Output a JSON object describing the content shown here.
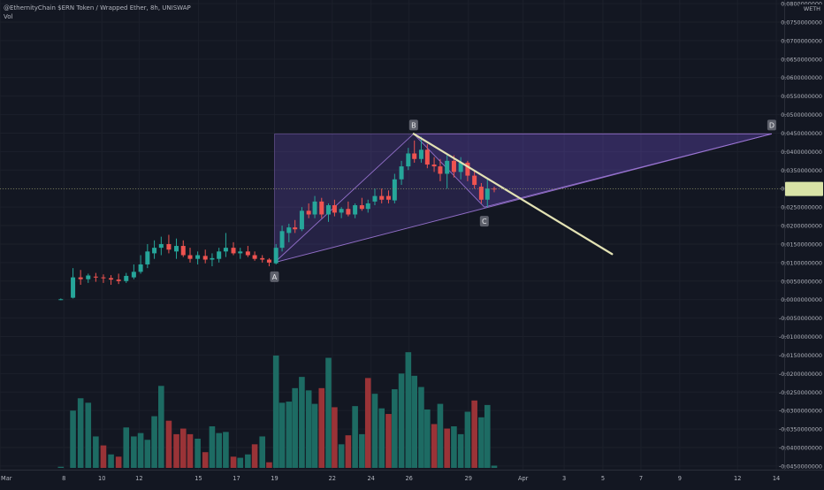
{
  "header": {
    "symbol_line": "@EthernityChain $ERN Token / Wrapped Ether, 8h, UNISWAP",
    "volume_label": "Vol"
  },
  "colors": {
    "background": "#131722",
    "up": "#26a69a",
    "down": "#ef5350",
    "volume_up": "#1d6b63",
    "volume_down": "#9a3337",
    "pattern_fill": "#6a4fc0",
    "pattern_line": "#9f78d8",
    "trend_line": "#e3e2b4",
    "price_badge": "#d8e2a6",
    "point_label_bg": "#5d606b"
  },
  "chart_data": {
    "type": "candlestick",
    "title": "@EthernityChain $ERN Token / Wrapped Ether, 8h, UNISWAP",
    "quote_unit": "WETH",
    "y_axis": {
      "ylim": [
        -0.0455,
        0.0805
      ],
      "tick_labels": [
        "0.0800000000",
        "0.0750000000",
        "0.0700000000",
        "0.0650000000",
        "0.0600000000",
        "0.0550000000",
        "0.0500000000",
        "0.0450000000",
        "0.0400000000",
        "0.0350000000",
        "0.0300000000",
        "0.0250000000",
        "0.0200000000",
        "0.0150000000",
        "0.0100000000",
        "0.0050000000",
        "0.0000000000",
        "-0.0050000000",
        "-0.0100000000",
        "-0.0150000000",
        "-0.0200000000",
        "-0.0250000000",
        "-0.0300000000",
        "-0.0350000000",
        "-0.0400000000",
        "-0.0450000000"
      ],
      "tick_values": [
        0.08,
        0.075,
        0.07,
        0.065,
        0.06,
        0.055,
        0.05,
        0.045,
        0.04,
        0.035,
        0.03,
        0.025,
        0.02,
        0.015,
        0.01,
        0.005,
        0.0,
        -0.005,
        -0.01,
        -0.015,
        -0.02,
        -0.025,
        -0.03,
        -0.035,
        -0.04,
        -0.045
      ],
      "current_price": 0.0299
    },
    "x_axis": {
      "tick_labels": [
        "Mar",
        "8",
        "10",
        "12",
        "15",
        "17",
        "19",
        "22",
        "24",
        "26",
        "29",
        "Apr",
        "3",
        "5",
        "7",
        "9",
        "12",
        "14"
      ],
      "tick_index": [
        0,
        8.4,
        13.4,
        18.3,
        26.1,
        31.1,
        36.1,
        43.7,
        48.8,
        53.8,
        61.6,
        68.8,
        74.2,
        79.3,
        84.3,
        89.4,
        97.0,
        102.1
      ],
      "xlim": [
        0,
        106
      ]
    },
    "candles": [
      {
        "i": 8.0,
        "o": 4e-05,
        "h": 0.0003,
        "l": -0.00015,
        "c": 0.0001
      },
      {
        "i": 9.6,
        "o": 0.0005,
        "h": 0.0085,
        "l": 0.0003,
        "c": 0.006
      },
      {
        "i": 10.6,
        "o": 0.006,
        "h": 0.008,
        "l": 0.004,
        "c": 0.0055
      },
      {
        "i": 11.6,
        "o": 0.0055,
        "h": 0.007,
        "l": 0.0045,
        "c": 0.0065
      },
      {
        "i": 12.6,
        "o": 0.0062,
        "h": 0.0072,
        "l": 0.0048,
        "c": 0.006
      },
      {
        "i": 13.6,
        "o": 0.006,
        "h": 0.0068,
        "l": 0.0045,
        "c": 0.0058
      },
      {
        "i": 14.6,
        "o": 0.0058,
        "h": 0.0066,
        "l": 0.004,
        "c": 0.0054
      },
      {
        "i": 15.6,
        "o": 0.0054,
        "h": 0.007,
        "l": 0.0042,
        "c": 0.005
      },
      {
        "i": 16.6,
        "o": 0.005,
        "h": 0.0072,
        "l": 0.0045,
        "c": 0.0064
      },
      {
        "i": 17.6,
        "o": 0.006,
        "h": 0.0095,
        "l": 0.0055,
        "c": 0.0075
      },
      {
        "i": 18.5,
        "o": 0.0075,
        "h": 0.012,
        "l": 0.007,
        "c": 0.0095
      },
      {
        "i": 19.4,
        "o": 0.0095,
        "h": 0.015,
        "l": 0.0085,
        "c": 0.013
      },
      {
        "i": 20.3,
        "o": 0.0125,
        "h": 0.016,
        "l": 0.011,
        "c": 0.014
      },
      {
        "i": 21.2,
        "o": 0.014,
        "h": 0.017,
        "l": 0.012,
        "c": 0.015
      },
      {
        "i": 22.2,
        "o": 0.015,
        "h": 0.0175,
        "l": 0.0125,
        "c": 0.0135
      },
      {
        "i": 23.2,
        "o": 0.013,
        "h": 0.0165,
        "l": 0.011,
        "c": 0.0145
      },
      {
        "i": 24.1,
        "o": 0.0145,
        "h": 0.016,
        "l": 0.0115,
        "c": 0.012
      },
      {
        "i": 25.0,
        "o": 0.012,
        "h": 0.014,
        "l": 0.01,
        "c": 0.011
      },
      {
        "i": 26.0,
        "o": 0.011,
        "h": 0.013,
        "l": 0.0095,
        "c": 0.012
      },
      {
        "i": 27.0,
        "o": 0.0118,
        "h": 0.0135,
        "l": 0.0098,
        "c": 0.0108
      },
      {
        "i": 27.9,
        "o": 0.0108,
        "h": 0.0125,
        "l": 0.009,
        "c": 0.0112
      },
      {
        "i": 28.8,
        "o": 0.011,
        "h": 0.014,
        "l": 0.01,
        "c": 0.013
      },
      {
        "i": 29.7,
        "o": 0.013,
        "h": 0.018,
        "l": 0.0115,
        "c": 0.014
      },
      {
        "i": 30.7,
        "o": 0.014,
        "h": 0.0155,
        "l": 0.012,
        "c": 0.0125
      },
      {
        "i": 31.6,
        "o": 0.0125,
        "h": 0.014,
        "l": 0.011,
        "c": 0.013
      },
      {
        "i": 32.6,
        "o": 0.013,
        "h": 0.0145,
        "l": 0.0115,
        "c": 0.012
      },
      {
        "i": 33.5,
        "o": 0.012,
        "h": 0.013,
        "l": 0.0105,
        "c": 0.011
      },
      {
        "i": 34.5,
        "o": 0.0112,
        "h": 0.012,
        "l": 0.01,
        "c": 0.0108
      },
      {
        "i": 35.4,
        "o": 0.0108,
        "h": 0.0112,
        "l": 0.009,
        "c": 0.01
      },
      {
        "i": 36.3,
        "o": 0.0098,
        "h": 0.015,
        "l": 0.0095,
        "c": 0.014
      },
      {
        "i": 37.1,
        "o": 0.014,
        "h": 0.02,
        "l": 0.013,
        "c": 0.0185
      },
      {
        "i": 38.0,
        "o": 0.018,
        "h": 0.0205,
        "l": 0.0155,
        "c": 0.0195
      },
      {
        "i": 38.8,
        "o": 0.0195,
        "h": 0.0215,
        "l": 0.018,
        "c": 0.019
      },
      {
        "i": 39.7,
        "o": 0.019,
        "h": 0.025,
        "l": 0.0185,
        "c": 0.024
      },
      {
        "i": 40.6,
        "o": 0.024,
        "h": 0.026,
        "l": 0.022,
        "c": 0.023
      },
      {
        "i": 41.4,
        "o": 0.023,
        "h": 0.028,
        "l": 0.022,
        "c": 0.0265
      },
      {
        "i": 42.3,
        "o": 0.0265,
        "h": 0.0275,
        "l": 0.022,
        "c": 0.023
      },
      {
        "i": 43.2,
        "o": 0.023,
        "h": 0.026,
        "l": 0.021,
        "c": 0.0255
      },
      {
        "i": 44.0,
        "o": 0.0255,
        "h": 0.027,
        "l": 0.0225,
        "c": 0.0235
      },
      {
        "i": 44.9,
        "o": 0.0235,
        "h": 0.025,
        "l": 0.022,
        "c": 0.0245
      },
      {
        "i": 45.8,
        "o": 0.0245,
        "h": 0.0265,
        "l": 0.0225,
        "c": 0.023
      },
      {
        "i": 46.7,
        "o": 0.023,
        "h": 0.026,
        "l": 0.022,
        "c": 0.0255
      },
      {
        "i": 47.6,
        "o": 0.0255,
        "h": 0.0275,
        "l": 0.024,
        "c": 0.0245
      },
      {
        "i": 48.4,
        "o": 0.0245,
        "h": 0.027,
        "l": 0.0235,
        "c": 0.026
      },
      {
        "i": 49.3,
        "o": 0.0265,
        "h": 0.03,
        "l": 0.0255,
        "c": 0.028
      },
      {
        "i": 50.2,
        "o": 0.028,
        "h": 0.03,
        "l": 0.026,
        "c": 0.027
      },
      {
        "i": 51.1,
        "o": 0.028,
        "h": 0.0295,
        "l": 0.026,
        "c": 0.027
      },
      {
        "i": 51.9,
        "o": 0.0268,
        "h": 0.034,
        "l": 0.026,
        "c": 0.0325
      },
      {
        "i": 52.8,
        "o": 0.0325,
        "h": 0.0375,
        "l": 0.031,
        "c": 0.036
      },
      {
        "i": 53.7,
        "o": 0.036,
        "h": 0.041,
        "l": 0.035,
        "c": 0.0395
      },
      {
        "i": 54.5,
        "o": 0.0395,
        "h": 0.043,
        "l": 0.037,
        "c": 0.038
      },
      {
        "i": 55.4,
        "o": 0.038,
        "h": 0.044,
        "l": 0.037,
        "c": 0.0405
      },
      {
        "i": 56.2,
        "o": 0.0405,
        "h": 0.042,
        "l": 0.0355,
        "c": 0.0365
      },
      {
        "i": 57.1,
        "o": 0.0365,
        "h": 0.0385,
        "l": 0.0345,
        "c": 0.036
      },
      {
        "i": 57.9,
        "o": 0.036,
        "h": 0.038,
        "l": 0.032,
        "c": 0.034
      },
      {
        "i": 58.8,
        "o": 0.034,
        "h": 0.0395,
        "l": 0.03,
        "c": 0.0375
      },
      {
        "i": 59.7,
        "o": 0.0375,
        "h": 0.039,
        "l": 0.033,
        "c": 0.0345
      },
      {
        "i": 60.6,
        "o": 0.0345,
        "h": 0.0385,
        "l": 0.0325,
        "c": 0.037
      },
      {
        "i": 61.5,
        "o": 0.037,
        "h": 0.0375,
        "l": 0.032,
        "c": 0.0335
      },
      {
        "i": 62.4,
        "o": 0.0335,
        "h": 0.035,
        "l": 0.03,
        "c": 0.031
      },
      {
        "i": 63.3,
        "o": 0.0305,
        "h": 0.0315,
        "l": 0.026,
        "c": 0.027
      },
      {
        "i": 64.1,
        "o": 0.027,
        "h": 0.0325,
        "l": 0.025,
        "c": 0.03
      },
      {
        "i": 65.0,
        "o": 0.03,
        "h": 0.0305,
        "l": 0.029,
        "c": 0.0299
      }
    ],
    "volume": [
      {
        "i": 8.0,
        "v": 0.01,
        "up": true
      },
      {
        "i": 9.6,
        "v": 0.51,
        "up": true
      },
      {
        "i": 10.6,
        "v": 0.62,
        "up": true
      },
      {
        "i": 11.6,
        "v": 0.58,
        "up": true
      },
      {
        "i": 12.6,
        "v": 0.28,
        "up": true
      },
      {
        "i": 13.6,
        "v": 0.2,
        "up": false
      },
      {
        "i": 14.6,
        "v": 0.12,
        "up": true
      },
      {
        "i": 15.6,
        "v": 0.1,
        "up": false
      },
      {
        "i": 16.6,
        "v": 0.36,
        "up": true
      },
      {
        "i": 17.6,
        "v": 0.28,
        "up": true
      },
      {
        "i": 18.5,
        "v": 0.31,
        "up": true
      },
      {
        "i": 19.4,
        "v": 0.25,
        "up": true
      },
      {
        "i": 20.3,
        "v": 0.46,
        "up": true
      },
      {
        "i": 21.2,
        "v": 0.73,
        "up": true
      },
      {
        "i": 22.2,
        "v": 0.42,
        "up": false
      },
      {
        "i": 23.2,
        "v": 0.3,
        "up": false
      },
      {
        "i": 24.1,
        "v": 0.35,
        "up": false
      },
      {
        "i": 25.0,
        "v": 0.3,
        "up": false
      },
      {
        "i": 26.0,
        "v": 0.26,
        "up": true
      },
      {
        "i": 27.0,
        "v": 0.14,
        "up": false
      },
      {
        "i": 27.9,
        "v": 0.37,
        "up": true
      },
      {
        "i": 28.8,
        "v": 0.31,
        "up": true
      },
      {
        "i": 29.7,
        "v": 0.32,
        "up": true
      },
      {
        "i": 30.7,
        "v": 0.1,
        "up": false
      },
      {
        "i": 31.6,
        "v": 0.09,
        "up": true
      },
      {
        "i": 32.6,
        "v": 0.12,
        "up": true
      },
      {
        "i": 33.5,
        "v": 0.21,
        "up": false
      },
      {
        "i": 34.5,
        "v": 0.28,
        "up": true
      },
      {
        "i": 35.4,
        "v": 0.05,
        "up": false
      },
      {
        "i": 36.3,
        "v": 1.0,
        "up": true
      },
      {
        "i": 37.1,
        "v": 0.58,
        "up": true
      },
      {
        "i": 38.0,
        "v": 0.59,
        "up": true
      },
      {
        "i": 38.8,
        "v": 0.71,
        "up": true
      },
      {
        "i": 39.7,
        "v": 0.81,
        "up": true
      },
      {
        "i": 40.6,
        "v": 0.69,
        "up": true
      },
      {
        "i": 41.4,
        "v": 0.57,
        "up": true
      },
      {
        "i": 42.3,
        "v": 0.71,
        "up": false
      },
      {
        "i": 43.2,
        "v": 0.98,
        "up": true
      },
      {
        "i": 44.0,
        "v": 0.54,
        "up": false
      },
      {
        "i": 44.9,
        "v": 0.21,
        "up": true
      },
      {
        "i": 45.8,
        "v": 0.29,
        "up": false
      },
      {
        "i": 46.7,
        "v": 0.55,
        "up": true
      },
      {
        "i": 47.6,
        "v": 0.3,
        "up": true
      },
      {
        "i": 48.4,
        "v": 0.8,
        "up": false
      },
      {
        "i": 49.3,
        "v": 0.66,
        "up": true
      },
      {
        "i": 50.2,
        "v": 0.53,
        "up": true
      },
      {
        "i": 51.1,
        "v": 0.48,
        "up": false
      },
      {
        "i": 51.9,
        "v": 0.7,
        "up": true
      },
      {
        "i": 52.8,
        "v": 0.84,
        "up": true
      },
      {
        "i": 53.7,
        "v": 1.03,
        "up": true
      },
      {
        "i": 54.5,
        "v": 0.82,
        "up": true
      },
      {
        "i": 55.4,
        "v": 0.72,
        "up": true
      },
      {
        "i": 56.2,
        "v": 0.52,
        "up": true
      },
      {
        "i": 57.1,
        "v": 0.39,
        "up": false
      },
      {
        "i": 57.9,
        "v": 0.57,
        "up": true
      },
      {
        "i": 58.8,
        "v": 0.35,
        "up": false
      },
      {
        "i": 59.7,
        "v": 0.37,
        "up": true
      },
      {
        "i": 60.6,
        "v": 0.3,
        "up": true
      },
      {
        "i": 61.5,
        "v": 0.5,
        "up": true
      },
      {
        "i": 62.4,
        "v": 0.6,
        "up": false
      },
      {
        "i": 63.3,
        "v": 0.45,
        "up": true
      },
      {
        "i": 64.1,
        "v": 0.56,
        "up": true
      },
      {
        "i": 65.0,
        "v": 0.02,
        "up": true
      }
    ],
    "pattern": {
      "points": [
        {
          "label": "A",
          "i": 36.1,
          "price": 0.01,
          "label_pos": "below"
        },
        {
          "label": "B",
          "i": 54.4,
          "price": 0.0448,
          "label_pos": "above"
        },
        {
          "label": "C",
          "i": 63.7,
          "price": 0.025,
          "label_pos": "below"
        },
        {
          "label": "D",
          "i": 101.5,
          "price": 0.0448,
          "label_pos": "above"
        }
      ],
      "trend_line": {
        "from": {
          "i": 54.4,
          "price": 0.0448
        },
        "to": {
          "i": 80.5,
          "price": 0.0123
        }
      }
    }
  }
}
